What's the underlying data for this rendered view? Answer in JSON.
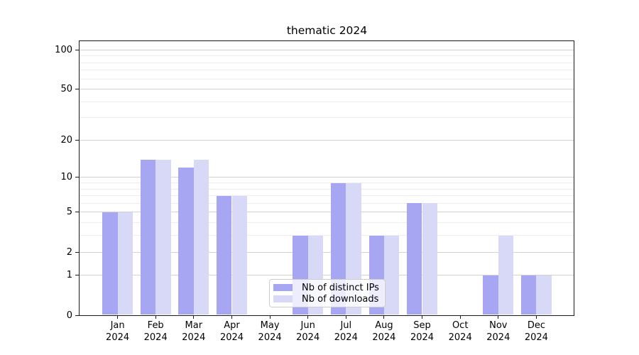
{
  "title": "thematic 2024",
  "chart_data": {
    "type": "bar",
    "categories": [
      "Jan",
      "Feb",
      "Mar",
      "Apr",
      "May",
      "Jun",
      "Jul",
      "Aug",
      "Sep",
      "Oct",
      "Nov",
      "Dec"
    ],
    "category_year": "2024",
    "series": [
      {
        "name": "Nb of distinct IPs",
        "color": "#a6a6f2",
        "values": [
          5,
          14,
          12,
          7,
          0,
          3,
          9,
          3,
          6,
          0,
          1,
          1
        ]
      },
      {
        "name": "Nb of downloads",
        "color": "#d8d8f7",
        "values": [
          5,
          14,
          14,
          7,
          0,
          3,
          9,
          3,
          6,
          0,
          3,
          1
        ]
      }
    ],
    "title": "thematic 2024",
    "xlabel": "",
    "ylabel": "",
    "yscale": "log1p",
    "ylim": [
      0,
      120
    ],
    "y_tick_labels": [
      0,
      1,
      2,
      5,
      10,
      20,
      50,
      100
    ],
    "y_major_gridlines": [
      1,
      2,
      5,
      10,
      20,
      50,
      100
    ],
    "y_minor_gridlines": [
      3,
      4,
      6,
      7,
      8,
      9,
      30,
      40,
      60,
      70,
      80,
      90
    ],
    "grid": true,
    "legend_position": "lower center"
  },
  "colors": {
    "background": "#ffffff",
    "bar_dark": "#a6a6f2",
    "bar_light": "#d8d8f7",
    "major_grid": "#d2d2d2",
    "minor_grid": "#ededed",
    "spine": "#1a1a1a",
    "text": "#000000",
    "legend_border": "#cccccc"
  }
}
